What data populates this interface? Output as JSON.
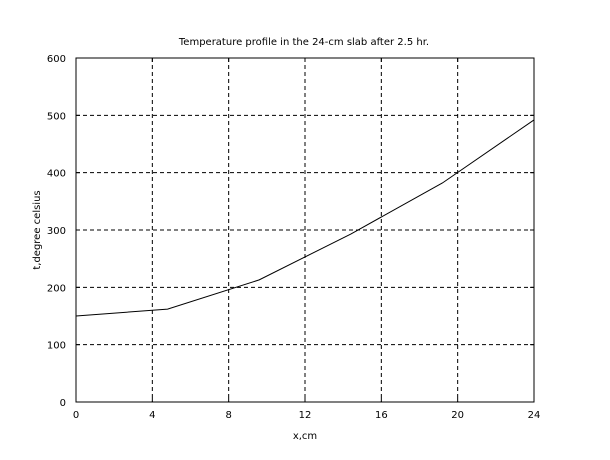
{
  "chart_data": {
    "type": "line",
    "title": "Temperature profile in the 24-cm slab after 2.5 hr.",
    "xlabel": "x,cm",
    "ylabel": "t,degree celsius",
    "xlim": [
      0,
      24
    ],
    "ylim": [
      0,
      600
    ],
    "xticks": [
      "0",
      "4",
      "8",
      "12",
      "16",
      "20",
      "24"
    ],
    "yticks": [
      "0",
      "100",
      "200",
      "300",
      "400",
      "500",
      "600"
    ],
    "grid": true,
    "series": [
      {
        "x": [
          0,
          4.8,
          9.6,
          14.4,
          19.2,
          24
        ],
        "y": [
          150,
          162,
          213,
          293,
          382,
          492
        ]
      }
    ]
  }
}
